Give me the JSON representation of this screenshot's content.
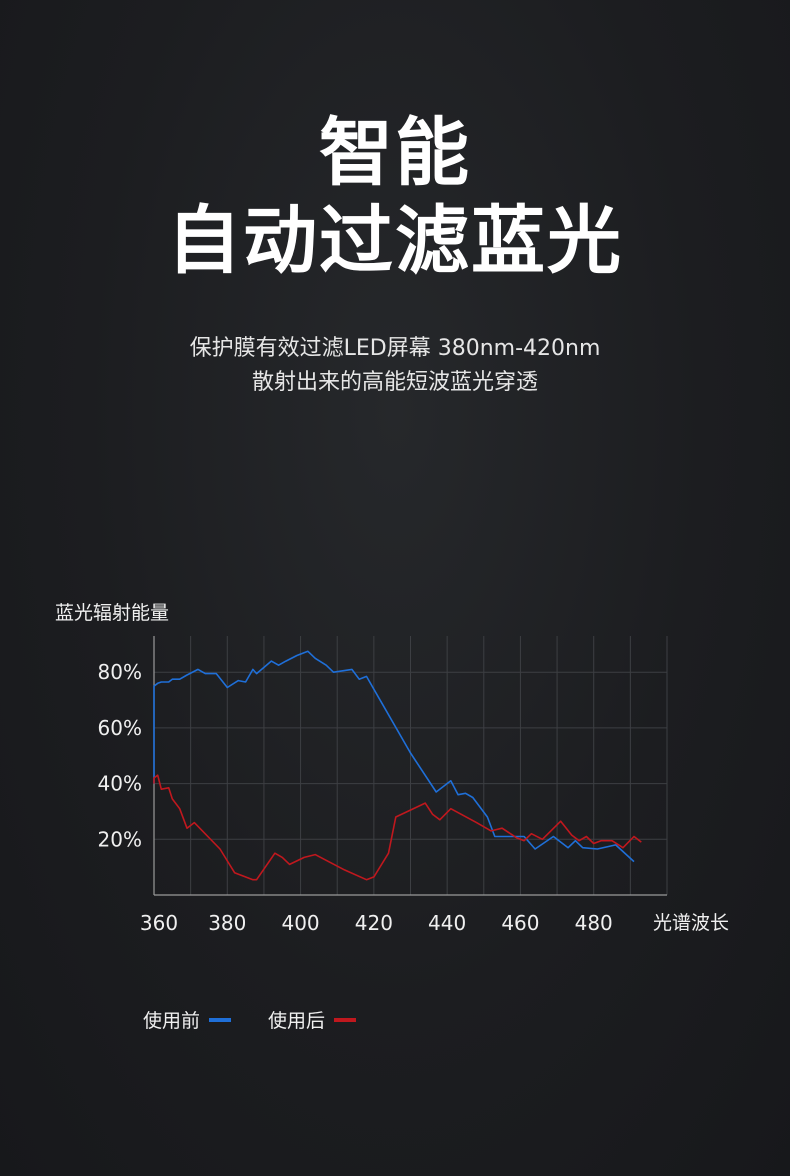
{
  "headline": {
    "line1": "智能",
    "line2": "自动过滤蓝光"
  },
  "subtitle": {
    "line1": "保护膜有效过滤LED屏幕 380nm-420nm",
    "line2": "散射出来的高能短波蓝光穿透"
  },
  "chart_data": {
    "type": "line",
    "ylabel": "蓝光辐射能量",
    "xlabel": "光谱波长",
    "x_ticks": [
      360,
      380,
      400,
      420,
      440,
      460,
      480
    ],
    "y_ticks": [
      20,
      40,
      60,
      80
    ],
    "y_tick_labels": [
      "20%",
      "40%",
      "60%",
      "80%"
    ],
    "xlim": [
      360,
      500
    ],
    "ylim": [
      0,
      93
    ],
    "grid": true,
    "legend_position": "bottom-left",
    "series": [
      {
        "name": "使用前",
        "color": "#1f6fd8",
        "points": [
          [
            360,
            40
          ],
          [
            360,
            75
          ],
          [
            361,
            76
          ],
          [
            362,
            76.5
          ],
          [
            364,
            76.5
          ],
          [
            365,
            77.5
          ],
          [
            367,
            77.5
          ],
          [
            369,
            79
          ],
          [
            372,
            81
          ],
          [
            374,
            79.5
          ],
          [
            377,
            79.5
          ],
          [
            380,
            74.5
          ],
          [
            383,
            77
          ],
          [
            385,
            76.5
          ],
          [
            387,
            81
          ],
          [
            388,
            79.5
          ],
          [
            392,
            84
          ],
          [
            394,
            82.5
          ],
          [
            396,
            84
          ],
          [
            399,
            86
          ],
          [
            402,
            87.5
          ],
          [
            404,
            85
          ],
          [
            407,
            82.5
          ],
          [
            409,
            80
          ],
          [
            414,
            81
          ],
          [
            416,
            77.5
          ],
          [
            418,
            78.5
          ],
          [
            430,
            51
          ],
          [
            437,
            37
          ],
          [
            441,
            41
          ],
          [
            443,
            36
          ],
          [
            445,
            36.5
          ],
          [
            447,
            35
          ],
          [
            451,
            28
          ],
          [
            453,
            21
          ],
          [
            458,
            21
          ],
          [
            461,
            21
          ],
          [
            464,
            16.5
          ],
          [
            469,
            21
          ],
          [
            473,
            17
          ],
          [
            475,
            19.5
          ],
          [
            477,
            17
          ],
          [
            481,
            16.5
          ],
          [
            486,
            18
          ],
          [
            491,
            12
          ]
        ]
      },
      {
        "name": "使用后",
        "color": "#c0181e",
        "points": [
          [
            360,
            40
          ],
          [
            360,
            42
          ],
          [
            361,
            43
          ],
          [
            362,
            38
          ],
          [
            364,
            38.5
          ],
          [
            365,
            34.5
          ],
          [
            367,
            31
          ],
          [
            369,
            24
          ],
          [
            371,
            26
          ],
          [
            378,
            16.5
          ],
          [
            382,
            8
          ],
          [
            387,
            5.5
          ],
          [
            388,
            5.5
          ],
          [
            393,
            15
          ],
          [
            395,
            13.5
          ],
          [
            397,
            11
          ],
          [
            401,
            13.5
          ],
          [
            404,
            14.5
          ],
          [
            412,
            9
          ],
          [
            418,
            5.5
          ],
          [
            420,
            6.5
          ],
          [
            424,
            15
          ],
          [
            426,
            28
          ],
          [
            434,
            33
          ],
          [
            436,
            29
          ],
          [
            438,
            27
          ],
          [
            441,
            31
          ],
          [
            448,
            26
          ],
          [
            452,
            23
          ],
          [
            455,
            24
          ],
          [
            459,
            20.5
          ],
          [
            461,
            19.5
          ],
          [
            463,
            22
          ],
          [
            466,
            20
          ],
          [
            471,
            26.5
          ],
          [
            474,
            21.5
          ],
          [
            476,
            19.5
          ],
          [
            478,
            21
          ],
          [
            480,
            18.5
          ],
          [
            482,
            19.5
          ],
          [
            485,
            19.5
          ],
          [
            488,
            17
          ],
          [
            491,
            21
          ],
          [
            493,
            19
          ]
        ]
      }
    ]
  }
}
